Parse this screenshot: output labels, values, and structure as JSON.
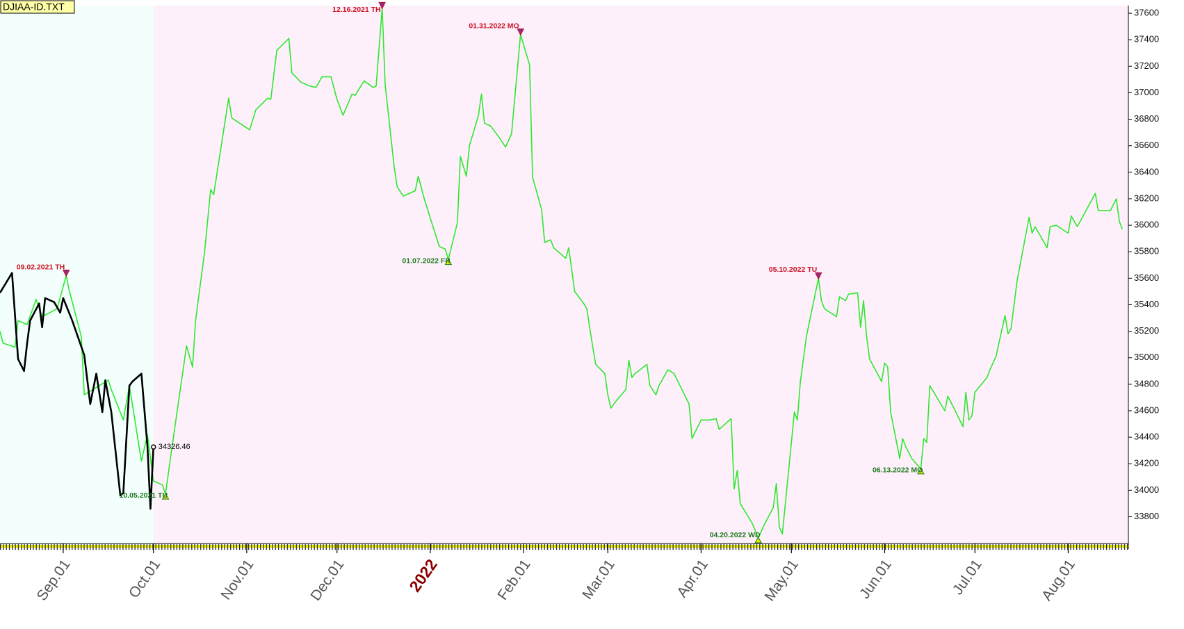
{
  "chart_data": {
    "type": "line",
    "title": "DJIAA-ID.TXT",
    "xlim": [
      "2021-08-11",
      "2022-08-21"
    ],
    "xticks": [
      {
        "value": "2021-09-01",
        "label": "Sep.01"
      },
      {
        "value": "2021-10-01",
        "label": "Oct.01"
      },
      {
        "value": "2021-11-01",
        "label": "Nov.01"
      },
      {
        "value": "2021-12-01",
        "label": "Dec.01"
      },
      {
        "value": "2022-01-01",
        "label": "2022",
        "emphasis": true
      },
      {
        "value": "2022-02-01",
        "label": "Feb.01"
      },
      {
        "value": "2022-03-01",
        "label": "Mar.01"
      },
      {
        "value": "2022-04-01",
        "label": "Apr.01"
      },
      {
        "value": "2022-05-01",
        "label": "May.01"
      },
      {
        "value": "2022-06-01",
        "label": "Jun.01"
      },
      {
        "value": "2022-07-01",
        "label": "Jul.01"
      },
      {
        "value": "2022-08-01",
        "label": "Aug.01"
      }
    ],
    "ylim": [
      33598,
      37658
    ],
    "yticks": [
      33800,
      34000,
      34200,
      34400,
      34600,
      34800,
      35000,
      35200,
      35400,
      35600,
      35800,
      36000,
      36200,
      36400,
      36600,
      36800,
      37000,
      37200,
      37400,
      37600
    ],
    "regions": [
      {
        "from": "2021-08-11",
        "to": "2021-10-01",
        "color": "#f2fffd"
      },
      {
        "from": "2021-10-01",
        "to": "2022-08-21",
        "color": "#fdf0fb"
      }
    ],
    "series": [
      {
        "color": "#2ee82e",
        "width": 1.6,
        "x": [
          "2021-08-11",
          "2021-08-12",
          "2021-08-16",
          "2021-08-17",
          "2021-08-20",
          "2021-08-23",
          "2021-08-25",
          "2021-08-30",
          "2021-09-02",
          "2021-09-03",
          "2021-09-07",
          "2021-09-08",
          "2021-09-13",
          "2021-09-16",
          "2021-09-17",
          "2021-09-21",
          "2021-09-23",
          "2021-09-27",
          "2021-09-29",
          "2021-10-01",
          "2021-10-04",
          "2021-10-05",
          "2021-10-07",
          "2021-10-12",
          "2021-10-14",
          "2021-10-15",
          "2021-10-18",
          "2021-10-20",
          "2021-10-21",
          "2021-10-26",
          "2021-10-27",
          "2021-10-29",
          "2021-11-02",
          "2021-11-04",
          "2021-11-08",
          "2021-11-09",
          "2021-11-11",
          "2021-11-15",
          "2021-11-16",
          "2021-11-19",
          "2021-11-22",
          "2021-11-24",
          "2021-11-26",
          "2021-11-29",
          "2021-12-01",
          "2021-12-03",
          "2021-12-06",
          "2021-12-07",
          "2021-12-10",
          "2021-12-13",
          "2021-12-14",
          "2021-12-16",
          "2021-12-17",
          "2021-12-20",
          "2021-12-21",
          "2021-12-23",
          "2021-12-27",
          "2021-12-28",
          "2021-12-30",
          "2022-01-03",
          "2022-01-04",
          "2022-01-06",
          "2022-01-07",
          "2022-01-10",
          "2022-01-11",
          "2022-01-13",
          "2022-01-14",
          "2022-01-17",
          "2022-01-18",
          "2022-01-19",
          "2022-01-21",
          "2022-01-24",
          "2022-01-26",
          "2022-01-28",
          "2022-01-31",
          "2022-02-03",
          "2022-02-04",
          "2022-02-07",
          "2022-02-08",
          "2022-02-10",
          "2022-02-11",
          "2022-02-15",
          "2022-02-16",
          "2022-02-18",
          "2022-02-21",
          "2022-02-22",
          "2022-02-24",
          "2022-02-25",
          "2022-02-28",
          "2022-03-01",
          "2022-03-02",
          "2022-03-04",
          "2022-03-07",
          "2022-03-08",
          "2022-03-09",
          "2022-03-10",
          "2022-03-14",
          "2022-03-15",
          "2022-03-17",
          "2022-03-18",
          "2022-03-21",
          "2022-03-23",
          "2022-03-25",
          "2022-03-28",
          "2022-03-29",
          "2022-04-01",
          "2022-04-04",
          "2022-04-06",
          "2022-04-07",
          "2022-04-11",
          "2022-04-12",
          "2022-04-13",
          "2022-04-14",
          "2022-04-18",
          "2022-04-20",
          "2022-04-22",
          "2022-04-25",
          "2022-04-26",
          "2022-04-27",
          "2022-04-28",
          "2022-05-02",
          "2022-05-03",
          "2022-05-04",
          "2022-05-06",
          "2022-05-10",
          "2022-05-11",
          "2022-05-12",
          "2022-05-16",
          "2022-05-17",
          "2022-05-19",
          "2022-05-20",
          "2022-05-23",
          "2022-05-24",
          "2022-05-25",
          "2022-05-26",
          "2022-05-27",
          "2022-05-31",
          "2022-06-01",
          "2022-06-02",
          "2022-06-03",
          "2022-06-06",
          "2022-06-07",
          "2022-06-08",
          "2022-06-10",
          "2022-06-13",
          "2022-06-14",
          "2022-06-15",
          "2022-06-16",
          "2022-06-21",
          "2022-06-22",
          "2022-06-24",
          "2022-06-27",
          "2022-06-28",
          "2022-06-29",
          "2022-06-30",
          "2022-07-01",
          "2022-07-05",
          "2022-07-06",
          "2022-07-08",
          "2022-07-11",
          "2022-07-12",
          "2022-07-13",
          "2022-07-15",
          "2022-07-19",
          "2022-07-20",
          "2022-07-21",
          "2022-07-25",
          "2022-07-26",
          "2022-07-28",
          "2022-08-01",
          "2022-08-02",
          "2022-08-04",
          "2022-08-05",
          "2022-08-10",
          "2022-08-11",
          "2022-08-15",
          "2022-08-17",
          "2022-08-18",
          "2022-08-19"
        ],
        "values": [
          35200,
          35110,
          35080,
          35280,
          35250,
          35440,
          35310,
          35370,
          35620,
          35510,
          35160,
          34720,
          34790,
          34830,
          34760,
          34530,
          34790,
          34220,
          34420,
          34070,
          34040,
          33970,
          34300,
          35090,
          34930,
          35280,
          35800,
          36270,
          36230,
          36960,
          36810,
          36780,
          36720,
          36870,
          36960,
          36950,
          37320,
          37410,
          37150,
          37080,
          37050,
          37040,
          37120,
          37120,
          36950,
          36830,
          36990,
          36980,
          37090,
          37040,
          37050,
          37640,
          37060,
          36440,
          36290,
          36220,
          36260,
          36370,
          36200,
          35910,
          35840,
          35820,
          35740,
          36020,
          36520,
          36370,
          36600,
          36830,
          36990,
          36770,
          36750,
          36660,
          36590,
          36690,
          37440,
          37210,
          36360,
          36120,
          35870,
          35890,
          35830,
          35750,
          35830,
          35500,
          35410,
          35370,
          35080,
          34950,
          34880,
          34720,
          34620,
          34680,
          34760,
          34980,
          34850,
          34880,
          34950,
          34790,
          34720,
          34790,
          34910,
          34880,
          34790,
          34650,
          34390,
          34530,
          34530,
          34540,
          34460,
          34540,
          34010,
          34150,
          33900,
          33750,
          33640,
          33740,
          33870,
          34050,
          33720,
          33670,
          34590,
          34530,
          34820,
          35160,
          35600,
          35430,
          35370,
          35310,
          35460,
          35430,
          35480,
          35490,
          35230,
          35430,
          35160,
          34990,
          34820,
          34960,
          34930,
          34590,
          34240,
          34390,
          34330,
          34240,
          34160,
          34390,
          34360,
          34790,
          34600,
          34710,
          34620,
          34480,
          34740,
          34530,
          34560,
          34740,
          34850,
          34910,
          35010,
          35320,
          35180,
          35220,
          35580,
          36060,
          35940,
          35990,
          35830,
          35990,
          36000,
          35940,
          36070,
          35990,
          36030,
          36240,
          36110,
          36110,
          36200,
          36030,
          35970
        ]
      },
      {
        "color": "#000000",
        "width": 2.6,
        "end_label": true,
        "x": [
          "2021-08-11",
          "2021-08-15",
          "2021-08-17",
          "2021-08-19",
          "2021-08-20",
          "2021-08-21",
          "2021-08-24",
          "2021-08-25",
          "2021-08-26",
          "2021-08-29",
          "2021-08-31",
          "2021-09-01",
          "2021-09-04",
          "2021-09-08",
          "2021-09-10",
          "2021-09-12",
          "2021-09-14",
          "2021-09-15",
          "2021-09-17",
          "2021-09-20",
          "2021-09-21",
          "2021-09-23",
          "2021-09-24",
          "2021-09-27",
          "2021-09-29",
          "2021-09-30",
          "2021-10-01"
        ],
        "values": [
          35490,
          35640,
          34990,
          34900,
          35110,
          35280,
          35410,
          35230,
          35450,
          35420,
          35340,
          35450,
          35280,
          35020,
          34650,
          34880,
          34590,
          34830,
          34590,
          33960,
          33980,
          34790,
          34820,
          34880,
          34330,
          33860,
          34326.46
        ]
      }
    ],
    "annotations": [
      {
        "text": "09.02.2021 TH",
        "x": "2021-09-02",
        "y": 35620,
        "kind": "high"
      },
      {
        "text": "10.05.2021 TU",
        "x": "2021-10-05",
        "y": 33970,
        "kind": "low"
      },
      {
        "text": "12.16.2021 TH",
        "x": "2021-12-16",
        "y": 37640,
        "kind": "high"
      },
      {
        "text": "01.07.2022 FR",
        "x": "2022-01-07",
        "y": 35740,
        "kind": "low"
      },
      {
        "text": "01.31.2022 MO",
        "x": "2022-01-31",
        "y": 37440,
        "kind": "high"
      },
      {
        "text": "04.20.2022 WD",
        "x": "2022-04-20",
        "y": 33640,
        "kind": "low"
      },
      {
        "text": "05.10.2022 TU",
        "x": "2022-05-10",
        "y": 35600,
        "kind": "high"
      },
      {
        "text": "06.13.2022 MO",
        "x": "2022-06-13",
        "y": 34160,
        "kind": "low"
      }
    ],
    "high_color": "#cc1122",
    "low_color": "#1f7a1f"
  }
}
